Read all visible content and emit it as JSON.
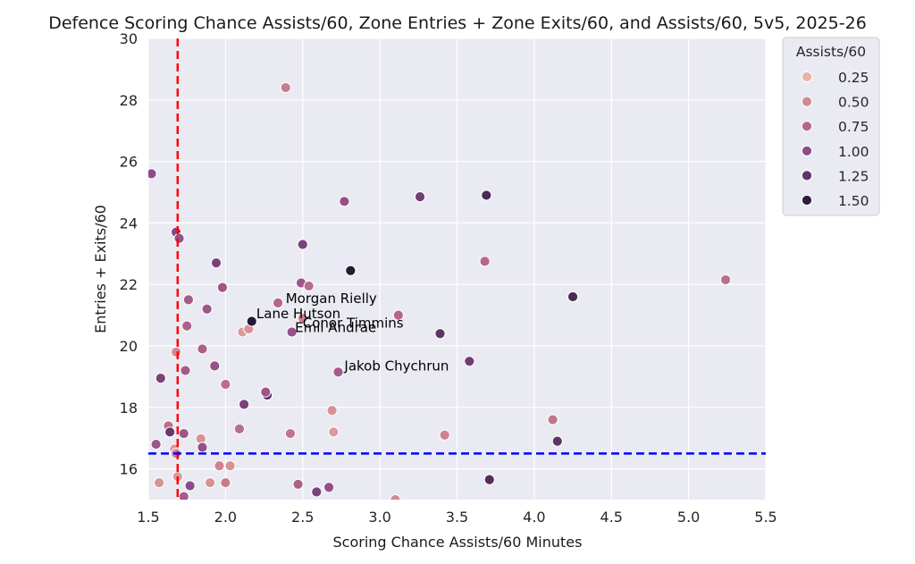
{
  "chart_data": {
    "type": "scatter",
    "title": "Defence Scoring Chance Assists/60, Zone Entries + Zone Exits/60, and Assists/60, 5v5, 2025-26",
    "xlabel": "Scoring Chance Assists/60 Minutes",
    "ylabel": "Entries + Exits/60",
    "xlim": [
      1.5,
      5.5
    ],
    "ylim": [
      15,
      30
    ],
    "xticks": [
      "1.5",
      "2.0",
      "2.5",
      "3.0",
      "3.5",
      "4.0",
      "4.5",
      "5.0",
      "5.5"
    ],
    "yticks": [
      "16",
      "18",
      "20",
      "22",
      "24",
      "26",
      "28",
      "30"
    ],
    "grid": true,
    "background": "#eaeaf2",
    "vline": {
      "x": 1.69,
      "color": "#ff0000",
      "style": "dashed"
    },
    "hline": {
      "y": 16.5,
      "color": "#0000ff",
      "style": "dashed"
    },
    "legend": {
      "title": "Assists/60",
      "placement": "outside-top-right",
      "entries": [
        {
          "label": "0.25",
          "color": "#e8b4a4"
        },
        {
          "label": "0.50",
          "color": "#d38a93"
        },
        {
          "label": "0.75",
          "color": "#b5668a"
        },
        {
          "label": "1.00",
          "color": "#8d4b88"
        },
        {
          "label": "1.25",
          "color": "#5e3466"
        },
        {
          "label": "1.50",
          "color": "#2b1c3d"
        }
      ]
    },
    "annotations": [
      {
        "text": "Morgan Rielly",
        "x": 2.39,
        "y": 21.4
      },
      {
        "text": "Lane Hutson",
        "x": 2.2,
        "y": 20.9
      },
      {
        "text": "Conor Timmins",
        "x": 2.5,
        "y": 20.6
      },
      {
        "text": "Emil Andrae",
        "x": 2.45,
        "y": 20.45
      },
      {
        "text": "Jakob Chychrun",
        "x": 2.77,
        "y": 19.2
      }
    ],
    "points": [
      {
        "x": 1.52,
        "y": 25.6,
        "c": 1.0
      },
      {
        "x": 1.68,
        "y": 23.7,
        "c": 1.05
      },
      {
        "x": 1.7,
        "y": 23.5,
        "c": 0.95
      },
      {
        "x": 1.55,
        "y": 16.8,
        "c": 0.9
      },
      {
        "x": 1.57,
        "y": 15.55,
        "c": 0.45
      },
      {
        "x": 1.58,
        "y": 18.95,
        "c": 1.1
      },
      {
        "x": 1.63,
        "y": 17.4,
        "c": 0.7
      },
      {
        "x": 1.64,
        "y": 17.2,
        "c": 1.2
      },
      {
        "x": 1.67,
        "y": 16.65,
        "c": 0.4
      },
      {
        "x": 1.68,
        "y": 16.5,
        "c": 0.55
      },
      {
        "x": 1.68,
        "y": 19.8,
        "c": 0.5
      },
      {
        "x": 1.69,
        "y": 15.75,
        "c": 0.4
      },
      {
        "x": 1.73,
        "y": 17.15,
        "c": 0.9
      },
      {
        "x": 1.73,
        "y": 15.1,
        "c": 0.85
      },
      {
        "x": 1.74,
        "y": 19.2,
        "c": 0.85
      },
      {
        "x": 1.75,
        "y": 20.65,
        "c": 0.8
      },
      {
        "x": 1.76,
        "y": 21.5,
        "c": 0.85
      },
      {
        "x": 1.77,
        "y": 15.45,
        "c": 1.0
      },
      {
        "x": 1.84,
        "y": 16.98,
        "c": 0.45
      },
      {
        "x": 1.85,
        "y": 19.9,
        "c": 0.8
      },
      {
        "x": 1.85,
        "y": 16.7,
        "c": 0.95
      },
      {
        "x": 1.88,
        "y": 21.2,
        "c": 0.9
      },
      {
        "x": 1.9,
        "y": 15.55,
        "c": 0.45
      },
      {
        "x": 1.93,
        "y": 19.35,
        "c": 0.95
      },
      {
        "x": 1.94,
        "y": 22.7,
        "c": 1.1
      },
      {
        "x": 1.96,
        "y": 16.1,
        "c": 0.55
      },
      {
        "x": 1.98,
        "y": 21.9,
        "c": 0.9
      },
      {
        "x": 2.0,
        "y": 18.75,
        "c": 0.7
      },
      {
        "x": 2.0,
        "y": 15.55,
        "c": 0.6
      },
      {
        "x": 2.03,
        "y": 16.1,
        "c": 0.45
      },
      {
        "x": 2.09,
        "y": 17.3,
        "c": 0.7
      },
      {
        "x": 2.11,
        "y": 20.45,
        "c": 0.4
      },
      {
        "x": 2.12,
        "y": 18.1,
        "c": 1.1
      },
      {
        "x": 2.15,
        "y": 20.55,
        "c": 0.45
      },
      {
        "x": 2.17,
        "y": 20.8,
        "c": 1.55
      },
      {
        "x": 2.27,
        "y": 18.4,
        "c": 1.3
      },
      {
        "x": 2.26,
        "y": 18.5,
        "c": 0.9
      },
      {
        "x": 2.34,
        "y": 21.4,
        "c": 0.75
      },
      {
        "x": 2.39,
        "y": 28.4,
        "c": 0.6
      },
      {
        "x": 2.42,
        "y": 17.15,
        "c": 0.65
      },
      {
        "x": 2.43,
        "y": 20.45,
        "c": 0.95
      },
      {
        "x": 2.47,
        "y": 15.5,
        "c": 0.8
      },
      {
        "x": 2.49,
        "y": 22.05,
        "c": 0.9
      },
      {
        "x": 2.5,
        "y": 23.3,
        "c": 1.1
      },
      {
        "x": 2.5,
        "y": 20.9,
        "c": 0.55
      },
      {
        "x": 2.54,
        "y": 21.95,
        "c": 0.7
      },
      {
        "x": 2.59,
        "y": 15.25,
        "c": 1.1
      },
      {
        "x": 2.67,
        "y": 15.4,
        "c": 0.95
      },
      {
        "x": 2.69,
        "y": 17.9,
        "c": 0.45
      },
      {
        "x": 2.7,
        "y": 17.2,
        "c": 0.4
      },
      {
        "x": 2.73,
        "y": 19.15,
        "c": 0.85
      },
      {
        "x": 2.77,
        "y": 24.7,
        "c": 0.95
      },
      {
        "x": 2.81,
        "y": 22.45,
        "c": 1.55
      },
      {
        "x": 3.1,
        "y": 15.0,
        "c": 0.5
      },
      {
        "x": 3.12,
        "y": 21.0,
        "c": 0.75
      },
      {
        "x": 3.26,
        "y": 24.85,
        "c": 1.15
      },
      {
        "x": 3.39,
        "y": 20.4,
        "c": 1.25
      },
      {
        "x": 3.42,
        "y": 17.1,
        "c": 0.55
      },
      {
        "x": 3.58,
        "y": 19.5,
        "c": 1.15
      },
      {
        "x": 3.68,
        "y": 22.75,
        "c": 0.75
      },
      {
        "x": 3.69,
        "y": 24.9,
        "c": 1.35
      },
      {
        "x": 3.71,
        "y": 15.65,
        "c": 1.3
      },
      {
        "x": 4.12,
        "y": 17.6,
        "c": 0.65
      },
      {
        "x": 4.15,
        "y": 16.9,
        "c": 1.25
      },
      {
        "x": 4.25,
        "y": 21.6,
        "c": 1.35
      },
      {
        "x": 5.24,
        "y": 22.15,
        "c": 0.7
      }
    ]
  }
}
